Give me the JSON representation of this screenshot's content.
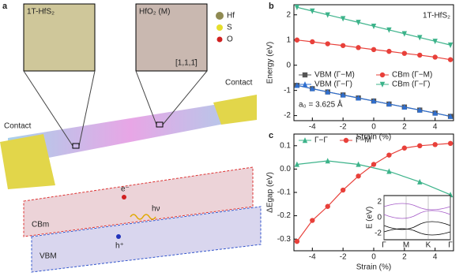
{
  "panel_a": {
    "label": "a",
    "left_inset": "1T-HfS₂",
    "right_inset": "HfO₂ (M)",
    "direction": "[1,1,1̄]",
    "atoms": [
      "Hf",
      "S",
      "O"
    ],
    "contacts": [
      "Contact",
      "Contact"
    ],
    "bands": [
      "CBm",
      "VBM"
    ],
    "carriers": [
      "e⁻",
      "h⁺",
      "hν"
    ]
  },
  "chart_data": [
    {
      "type": "line",
      "label": "b",
      "annotations": [
        "1T-HfS₂",
        "a₀ = 3.625 Å"
      ],
      "x_label": "Strain (%)",
      "y_label": "Energy (eV)",
      "x": [
        -5,
        -4,
        -3,
        -2,
        -1,
        0,
        1,
        2,
        3,
        4,
        5
      ],
      "xlim": [
        -5.2,
        5.2
      ],
      "xticks": [
        -4,
        -2,
        0,
        2,
        4
      ],
      "ylim": [
        -2.2,
        2.4
      ],
      "yticks": [
        -2,
        -1,
        0,
        1,
        2
      ],
      "legend": "bottom-left",
      "series": [
        {
          "name": "VBM (Γ−M)",
          "color": "#555555",
          "marker": "square",
          "values": [
            -0.8,
            -0.93,
            -1.06,
            -1.18,
            -1.3,
            -1.42,
            -1.54,
            -1.66,
            -1.78,
            -1.9,
            -2.03
          ]
        },
        {
          "name": "CBm (Γ−M)",
          "color": "#e8403a",
          "marker": "circle",
          "values": [
            1.0,
            0.93,
            0.85,
            0.78,
            0.7,
            0.62,
            0.55,
            0.47,
            0.4,
            0.32,
            0.22
          ]
        },
        {
          "name": "VBM (Γ−Γ)",
          "color": "#2f6fd0",
          "marker": "triangle-up",
          "values": [
            -0.8,
            -0.93,
            -1.06,
            -1.18,
            -1.3,
            -1.42,
            -1.54,
            -1.66,
            -1.78,
            -1.9,
            -2.03
          ]
        },
        {
          "name": "CBm (Γ−Γ)",
          "color": "#3cb38a",
          "marker": "triangle-down",
          "values": [
            2.3,
            2.15,
            2.0,
            1.85,
            1.7,
            1.55,
            1.4,
            1.25,
            1.1,
            0.95,
            0.8
          ]
        }
      ]
    },
    {
      "type": "line",
      "label": "c",
      "x_label": "Strain (%)",
      "y_label": "ΔEgap (eV)",
      "xlim": [
        -5.2,
        5.2
      ],
      "xticks": [
        -4,
        -2,
        0,
        2,
        4
      ],
      "ylim": [
        -0.35,
        0.15
      ],
      "yticks": [
        -0.3,
        -0.2,
        -0.1,
        {
          "value": 0,
          "label": "0.0"
        },
        0.1
      ],
      "legend": "top-left",
      "series": [
        {
          "name": "Γ−Γ",
          "color": "#3cb38a",
          "marker": "triangle-up",
          "x": [
            -5,
            -3,
            -1,
            1,
            3,
            5
          ],
          "values": [
            0.02,
            0.035,
            0.02,
            -0.01,
            -0.055,
            -0.11
          ]
        },
        {
          "name": "Γ−M",
          "color": "#e8403a",
          "marker": "circle",
          "x": [
            -5,
            -4,
            -3,
            -2,
            -1,
            0,
            1,
            2,
            3,
            4,
            5
          ],
          "values": [
            -0.31,
            -0.22,
            -0.16,
            -0.09,
            -0.03,
            0.02,
            0.06,
            0.09,
            0.1,
            0.105,
            0.11
          ]
        }
      ],
      "inset": {
        "y_label": "E (eV)",
        "yticks": [
          "2",
          "0",
          "-2"
        ],
        "x_labels": [
          "Γ",
          "M",
          "K",
          "Γ"
        ]
      }
    }
  ]
}
